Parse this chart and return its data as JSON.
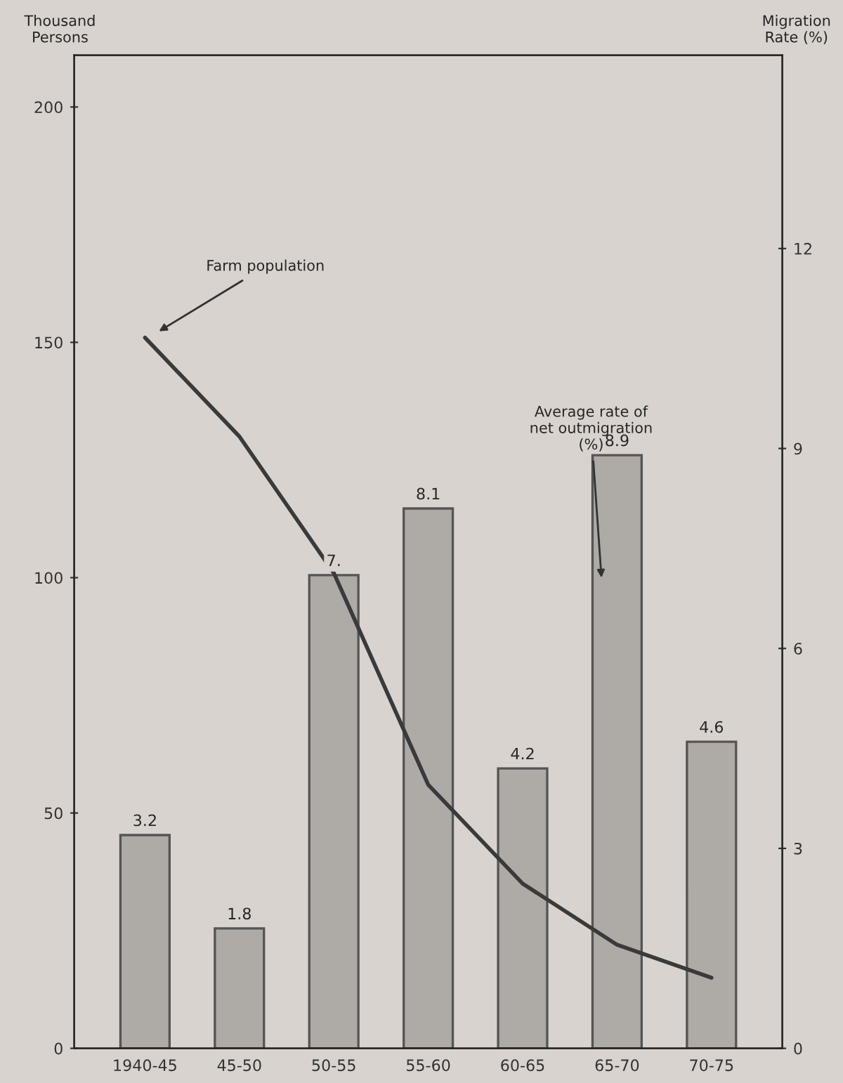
{
  "chart_data": {
    "type": "bar",
    "ylabel": "Thousand\nPersons",
    "y2label": "Migration\nRate (%)",
    "categories": [
      "1940-45",
      "45-50",
      "50-55",
      "55-60",
      "60-65",
      "65-70",
      "70-75"
    ],
    "series": [
      {
        "axis": "y2",
        "color": "#aeaaa6",
        "values": [
          3.2,
          1.8,
          7.1,
          8.1,
          4.2,
          8.9,
          4.6
        ],
        "value_labels": [
          "3.2",
          "1.8",
          "7.",
          "8.1",
          "4.2",
          "8.9",
          "4.6"
        ]
      },
      {
        "type": "line",
        "color": "#3a3a3a",
        "values": [
          151,
          130,
          101,
          56,
          35,
          22,
          15
        ]
      }
    ],
    "ylim": [
      0,
      211
    ],
    "yticks": [
      0,
      50,
      100,
      150,
      200
    ],
    "y2lim": [
      0,
      14.9
    ],
    "y2ticks": [
      0,
      3,
      6,
      9,
      12
    ],
    "annotations": [
      "Farm population",
      "Average rate of\nnet outmigration\n(%)"
    ],
    "grid": false,
    "legend": false
  }
}
